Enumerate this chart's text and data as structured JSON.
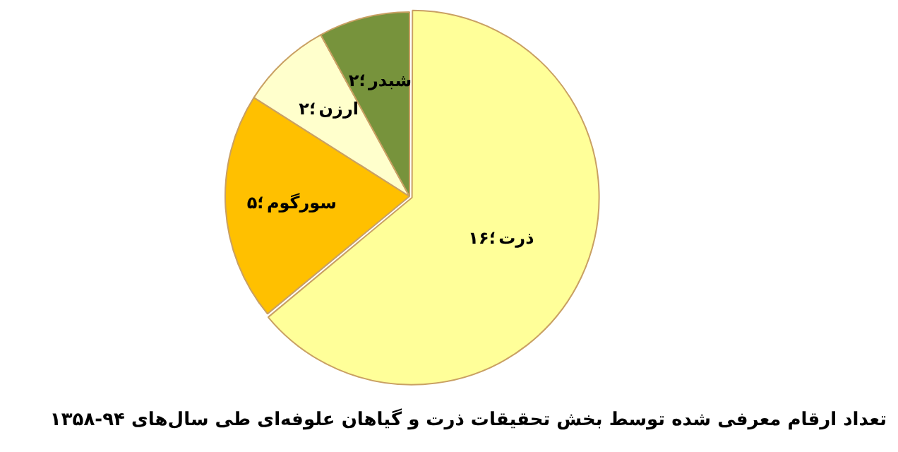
{
  "chart_data": {
    "type": "pie",
    "title": "تعداد ارقام معرفی شده توسط بخش تحقیقات ذرت و گیاهان علوفه‌ای طی سال‌های ۹۴-۱۳۵۸",
    "categories": [
      "ذرت",
      "سورگوم",
      "ارزن",
      "شبدر"
    ],
    "values": [
      16,
      5,
      2,
      2
    ],
    "colors": [
      "#ffff99",
      "#ffc000",
      "#ffffcc",
      "#77933c"
    ],
    "value_labels": [
      "؛۱۶",
      "؛۵",
      "؛۲",
      "؛۲"
    ],
    "legend": false
  }
}
